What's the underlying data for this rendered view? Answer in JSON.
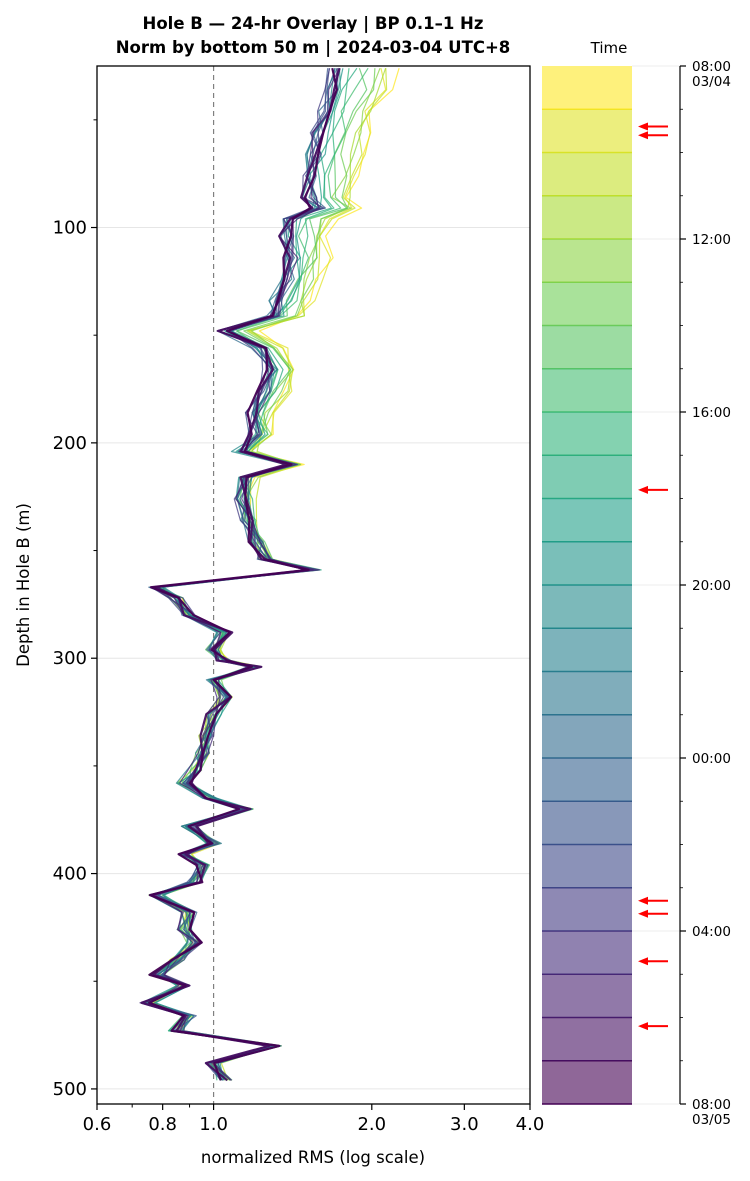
{
  "chart_data": {
    "type": "line",
    "title_line1": "Hole B — 24-hr Overlay  |  BP 0.1–1 Hz",
    "title_line2": "Norm by bottom 50 m  |  2024-03-04 UTC+8",
    "xlabel": "normalized RMS  (log scale)",
    "ylabel": "Depth in Hole B (m)",
    "x_scale": "log",
    "xlim": [
      0.6,
      4.0
    ],
    "ylim": [
      507,
      25
    ],
    "x_ticks": [
      0.6,
      0.8,
      1.0,
      2.0,
      3.0,
      4.0
    ],
    "x_tick_labels": [
      "0.6",
      "0.8",
      "1.0",
      "2.0",
      "3.0",
      "4.0"
    ],
    "y_ticks": [
      100,
      200,
      300,
      400,
      500
    ],
    "y_tick_labels": [
      "100",
      "200",
      "300",
      "400",
      "500"
    ],
    "reference_line_x": 1.0,
    "depths": [
      26,
      36,
      46,
      56,
      66,
      76,
      86,
      91,
      96,
      104,
      114,
      124,
      134,
      141,
      148,
      156,
      166,
      176,
      186,
      196,
      204,
      210,
      216,
      226,
      236,
      246,
      254,
      259,
      267,
      272,
      280,
      288,
      296,
      301,
      304,
      310,
      318,
      326,
      336,
      344,
      352,
      358,
      365,
      370,
      378,
      386,
      391,
      396,
      404,
      410,
      418,
      426,
      432,
      440,
      447,
      452,
      460,
      466,
      473,
      480,
      488,
      496
    ],
    "base_profile": [
      1.7,
      1.68,
      1.62,
      1.58,
      1.55,
      1.53,
      1.52,
      1.58,
      1.4,
      1.38,
      1.4,
      1.38,
      1.32,
      1.3,
      1.05,
      1.22,
      1.28,
      1.25,
      1.18,
      1.2,
      1.12,
      1.4,
      1.15,
      1.13,
      1.15,
      1.2,
      1.25,
      1.55,
      0.78,
      0.85,
      0.9,
      1.05,
      1.0,
      1.05,
      1.2,
      1.0,
      1.05,
      1.0,
      0.97,
      0.95,
      0.92,
      0.88,
      0.98,
      1.15,
      0.9,
      1.0,
      0.88,
      0.95,
      0.92,
      0.78,
      0.9,
      0.88,
      0.92,
      0.85,
      0.78,
      0.88,
      0.75,
      0.9,
      0.85,
      1.3,
      1.0,
      1.05
    ],
    "series_count": 24,
    "overlay_note": "24 hourly overlay profiles; early hours (yellow) show higher RMS in upper section",
    "colorbar": {
      "title": "Time",
      "tick_labels": [
        "08:00\n03/04",
        "12:00",
        "16:00",
        "20:00",
        "00:00",
        "04:00",
        "08:00\n03/05"
      ],
      "tick_hours": [
        0,
        4,
        8,
        12,
        16,
        20,
        24
      ],
      "segments": 24,
      "marked_hours": [
        1.4,
        1.6,
        9.8,
        19.3,
        19.6,
        20.7,
        22.2
      ]
    },
    "colors": {
      "viridis_start": "#fde725",
      "viridis_end": "#440154",
      "marker_arrow": "#ff0000",
      "ref_line": "#808080"
    }
  }
}
